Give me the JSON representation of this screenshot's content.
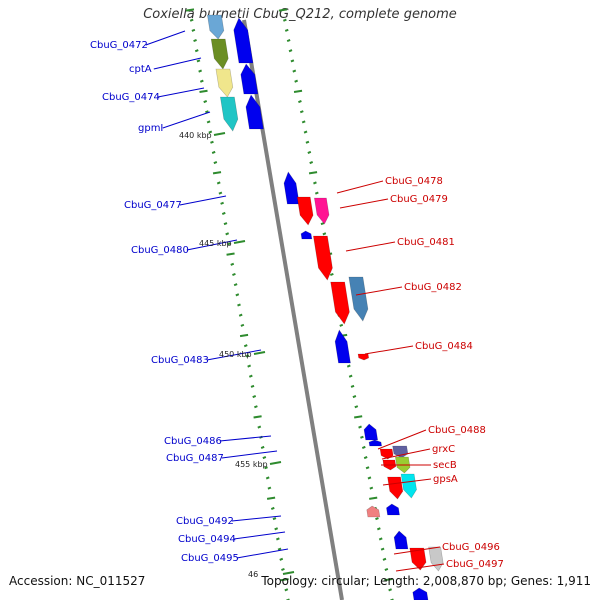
{
  "title": "Coxiella burnetii CbuG_Q212, complete genome",
  "footer": {
    "accession": "Accession: NC_011527",
    "summary": "Topology: circular; Length: 2,008,870 bp; Genes: 1,911"
  },
  "colors": {
    "forward_label": "#0000cc",
    "reverse_label": "#cc0000",
    "backbone": "#808080",
    "tick": "#2e8b2e",
    "forward_gene": "#0000ee",
    "reverse_gene": "#ff0000"
  },
  "ticks": [
    {
      "label": "440 kbp"
    },
    {
      "label": "445 kbp"
    },
    {
      "label": "450 kbp"
    },
    {
      "label": "455 kbp"
    },
    {
      "label": "46"
    }
  ],
  "forward_labels": [
    {
      "text": "CbuG_0472"
    },
    {
      "text": "cptA"
    },
    {
      "text": "CbuG_0474"
    },
    {
      "text": "gpmI"
    },
    {
      "text": "CbuG_0477"
    },
    {
      "text": "CbuG_0480"
    },
    {
      "text": "CbuG_0483"
    },
    {
      "text": "CbuG_0486"
    },
    {
      "text": "CbuG_0487"
    },
    {
      "text": "CbuG_0492"
    },
    {
      "text": "CbuG_0494"
    },
    {
      "text": "CbuG_0495"
    }
  ],
  "reverse_labels": [
    {
      "text": "CbuG_0478"
    },
    {
      "text": "CbuG_0479"
    },
    {
      "text": "CbuG_0481"
    },
    {
      "text": "CbuG_0482"
    },
    {
      "text": "CbuG_0484"
    },
    {
      "text": "CbuG_0488"
    },
    {
      "text": "grxC"
    },
    {
      "text": "secB"
    },
    {
      "text": "gpsA"
    },
    {
      "text": "CbuG_0496"
    },
    {
      "text": "CbuG_0497"
    }
  ]
}
